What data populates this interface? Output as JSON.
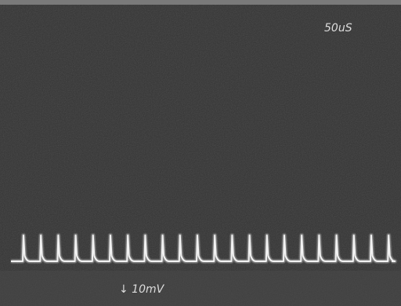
{
  "screen": {
    "timebase": "50uS",
    "scale_label": "↓ 10mV"
  }
}
